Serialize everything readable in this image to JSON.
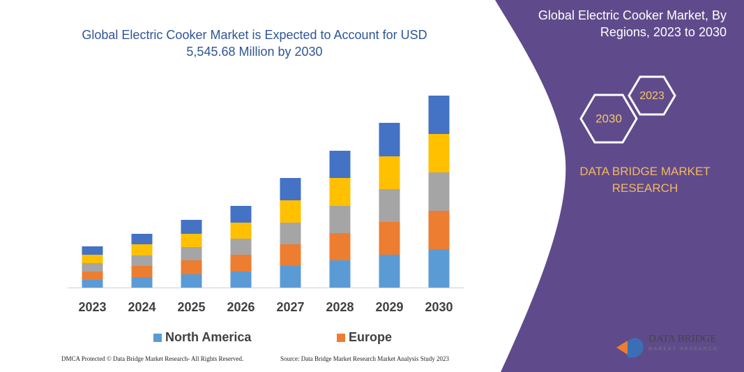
{
  "chart_data": {
    "type": "bar",
    "stacked": true,
    "title": "Global Electric Cooker Market is Expected to Account for USD 5,545.68 Million by 2030",
    "categories": [
      "2023",
      "2024",
      "2025",
      "2026",
      "2027",
      "2028",
      "2029",
      "2030"
    ],
    "series": [
      {
        "name": "North America",
        "color": "#5b9bd5",
        "values": [
          11,
          15,
          19,
          23,
          31,
          39,
          47,
          55
        ]
      },
      {
        "name": "Europe",
        "color": "#ed7d31",
        "values": [
          12,
          16,
          20,
          24,
          31,
          39,
          47,
          55
        ]
      },
      {
        "color": "#a5a5a5",
        "values": [
          12,
          15,
          19,
          23,
          31,
          39,
          47,
          55
        ]
      },
      {
        "color": "#ffc000",
        "values": [
          12,
          16,
          19,
          23,
          32,
          40,
          47,
          55
        ]
      },
      {
        "color": "#4472c4",
        "values": [
          12,
          15,
          20,
          24,
          32,
          39,
          48,
          55
        ]
      }
    ],
    "ylim": [
      0,
      280
    ]
  },
  "panel": {
    "title": "Global Electric Cooker Market, By Regions, 2023 to 2030",
    "hexagons": [
      "2030",
      "2023"
    ],
    "brand": "DATA BRIDGE MARKET RESEARCH"
  },
  "logo": {
    "name": "DATA BRIDGE",
    "tagline": "MARKET RESEARCH"
  },
  "footer": {
    "left": "DMCA Protected © Data Bridge Market Research- All Rights Reserved.",
    "right": "Source: Data Bridge Market Research Market Analysis Study 2023"
  }
}
